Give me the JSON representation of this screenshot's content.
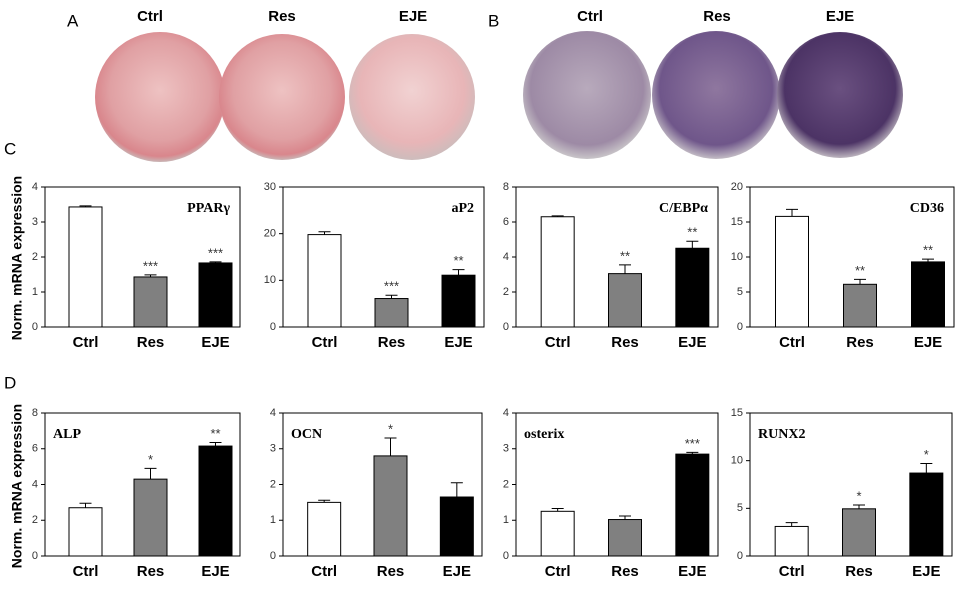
{
  "panel_labels": [
    "A",
    "B",
    "C",
    "D"
  ],
  "plates": {
    "A": [
      "Ctrl",
      "Res",
      "EJE"
    ],
    "B": [
      "Ctrl",
      "Res",
      "EJE"
    ]
  },
  "row_y_labels": [
    "Norm. mRNA expression",
    "Norm. mRNA expression"
  ],
  "chart_data": [
    {
      "type": "bar",
      "title": "PPARγ",
      "title_position": "right",
      "categories": [
        "Ctrl",
        "Res",
        "EJE"
      ],
      "values": [
        3.43,
        1.43,
        1.83
      ],
      "errors": [
        0.03,
        0.06,
        0.03
      ],
      "annotations": [
        null,
        "***",
        "***"
      ],
      "colors": [
        "#ffffff",
        "#808080",
        "#000000"
      ],
      "ylim": [
        0,
        4
      ],
      "yticks": [
        0,
        1,
        2,
        3,
        4
      ]
    },
    {
      "type": "bar",
      "title": "aP2",
      "title_position": "right",
      "categories": [
        "Ctrl",
        "Res",
        "EJE"
      ],
      "values": [
        19.8,
        6.1,
        11.1
      ],
      "errors": [
        0.6,
        0.7,
        1.2
      ],
      "annotations": [
        null,
        "***",
        "**"
      ],
      "colors": [
        "#ffffff",
        "#808080",
        "#000000"
      ],
      "ylim": [
        0,
        30
      ],
      "yticks": [
        0,
        10,
        20,
        30
      ]
    },
    {
      "type": "bar",
      "title": "C/EBPα",
      "title_position": "right",
      "categories": [
        "Ctrl",
        "Res",
        "EJE"
      ],
      "values": [
        6.3,
        3.05,
        4.5
      ],
      "errors": [
        0.05,
        0.5,
        0.4
      ],
      "annotations": [
        null,
        "**",
        "**"
      ],
      "colors": [
        "#ffffff",
        "#808080",
        "#000000"
      ],
      "ylim": [
        0,
        8
      ],
      "yticks": [
        0,
        2,
        4,
        6,
        8
      ]
    },
    {
      "type": "bar",
      "title": "CD36",
      "title_position": "right",
      "categories": [
        "Ctrl",
        "Res",
        "EJE"
      ],
      "values": [
        15.8,
        6.1,
        9.3
      ],
      "errors": [
        1.0,
        0.7,
        0.4
      ],
      "annotations": [
        null,
        "**",
        "**"
      ],
      "colors": [
        "#ffffff",
        "#808080",
        "#000000"
      ],
      "ylim": [
        0,
        20
      ],
      "yticks": [
        0,
        5,
        10,
        15,
        20
      ]
    },
    {
      "type": "bar",
      "title": "ALP",
      "title_position": "left",
      "categories": [
        "Ctrl",
        "Res",
        "EJE"
      ],
      "values": [
        2.7,
        4.3,
        6.15
      ],
      "errors": [
        0.25,
        0.6,
        0.2
      ],
      "annotations": [
        null,
        "*",
        "**"
      ],
      "colors": [
        "#ffffff",
        "#808080",
        "#000000"
      ],
      "ylim": [
        0,
        8
      ],
      "yticks": [
        0,
        2,
        4,
        6,
        8
      ]
    },
    {
      "type": "bar",
      "title": "OCN",
      "title_position": "left",
      "categories": [
        "Ctrl",
        "Res",
        "EJE"
      ],
      "values": [
        1.5,
        2.8,
        1.65
      ],
      "errors": [
        0.06,
        0.5,
        0.4
      ],
      "annotations": [
        null,
        "*",
        null
      ],
      "colors": [
        "#ffffff",
        "#808080",
        "#000000"
      ],
      "ylim": [
        0,
        4
      ],
      "yticks": [
        0,
        1,
        2,
        3,
        4
      ]
    },
    {
      "type": "bar",
      "title": "osterix",
      "title_position": "left",
      "categories": [
        "Ctrl",
        "Res",
        "EJE"
      ],
      "values": [
        1.25,
        1.02,
        2.85
      ],
      "errors": [
        0.08,
        0.1,
        0.05
      ],
      "annotations": [
        null,
        null,
        "***"
      ],
      "colors": [
        "#ffffff",
        "#808080",
        "#000000"
      ],
      "ylim": [
        0,
        4
      ],
      "yticks": [
        0,
        1,
        2,
        3,
        4
      ]
    },
    {
      "type": "bar",
      "title": "RUNX2",
      "title_position": "left",
      "categories": [
        "Ctrl",
        "Res",
        "EJE"
      ],
      "values": [
        3.1,
        4.95,
        8.7
      ],
      "errors": [
        0.4,
        0.4,
        1.0
      ],
      "annotations": [
        null,
        "*",
        "*"
      ],
      "colors": [
        "#ffffff",
        "#808080",
        "#000000"
      ],
      "ylim": [
        0,
        15
      ],
      "yticks": [
        0,
        5,
        10,
        15
      ]
    }
  ]
}
